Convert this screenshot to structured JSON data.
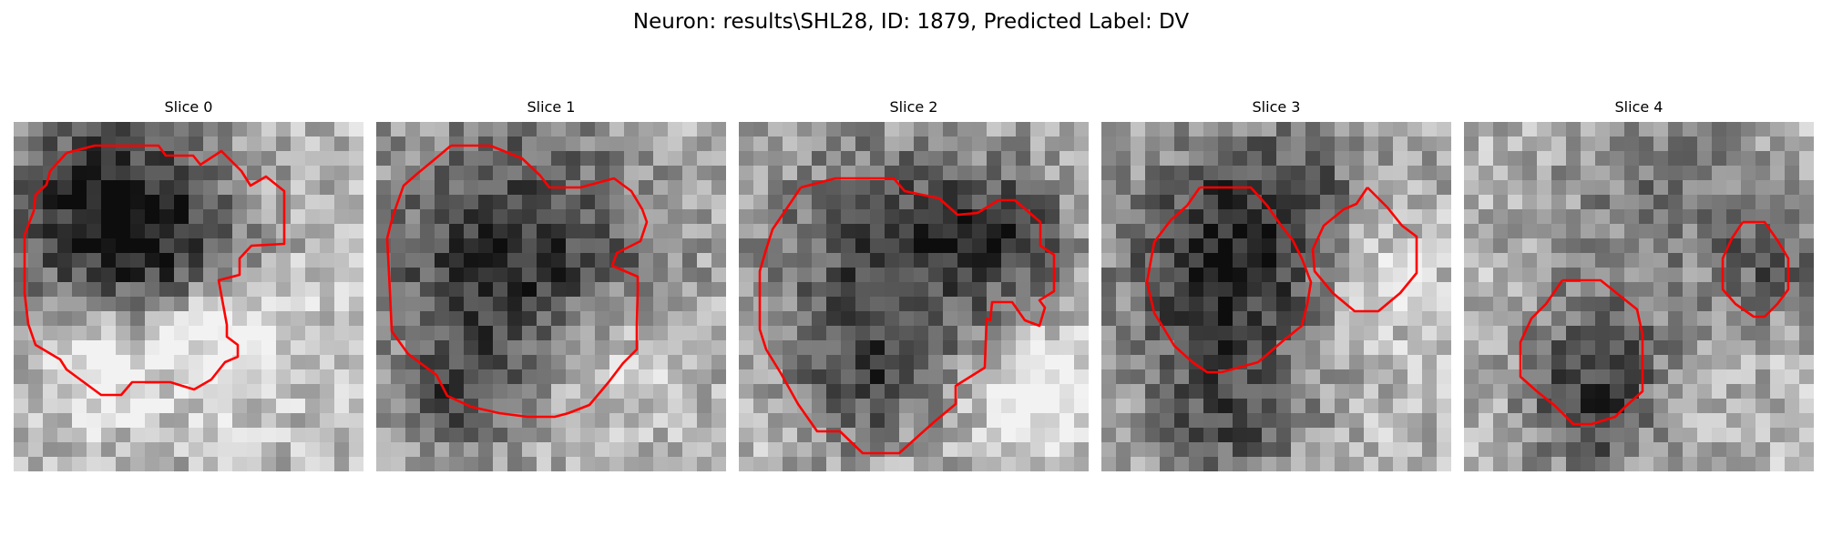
{
  "figure": {
    "title": "Neuron: results\\SHL28, ID: 1879, Predicted Label: DV"
  },
  "colors": {
    "contour": "#ff0000",
    "background": "#ffffff"
  },
  "slices": [
    {
      "title": "Slice 0"
    },
    {
      "title": "Slice 1"
    },
    {
      "title": "Slice 2"
    },
    {
      "title": "Slice 3"
    },
    {
      "title": "Slice 4"
    }
  ]
}
